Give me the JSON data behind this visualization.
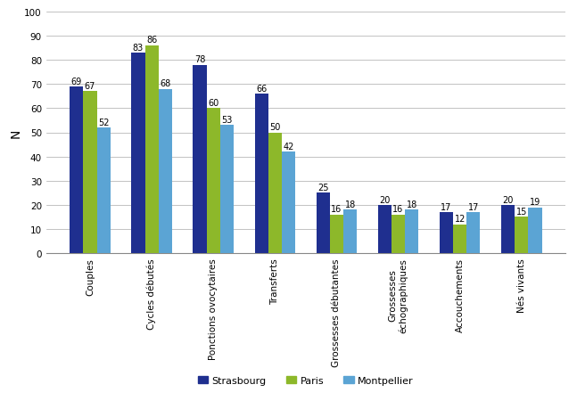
{
  "categories": [
    "Couples",
    "Cycles débutés",
    "Ponctions ovocytaires",
    "Transferts",
    "Grossesses débutantes",
    "Grossesses\néchographiques",
    "Accouchements",
    "Nés vivants"
  ],
  "strasbourg": [
    69,
    83,
    78,
    66,
    25,
    20,
    17,
    20
  ],
  "paris": [
    67,
    86,
    60,
    50,
    16,
    16,
    12,
    15
  ],
  "montpellier": [
    52,
    68,
    53,
    42,
    18,
    18,
    17,
    19
  ],
  "color_strasbourg": "#1F2F8F",
  "color_paris": "#8DB82A",
  "color_montpellier": "#5BA4D4",
  "ylabel": "N",
  "ylim": [
    0,
    100
  ],
  "yticks": [
    0,
    10,
    20,
    30,
    40,
    50,
    60,
    70,
    80,
    90,
    100
  ],
  "legend_labels": [
    "Strasbourg",
    "Paris",
    "Montpellier"
  ],
  "bar_width": 0.22,
  "label_fontsize": 7,
  "tick_label_fontsize": 7.5,
  "legend_fontsize": 8
}
